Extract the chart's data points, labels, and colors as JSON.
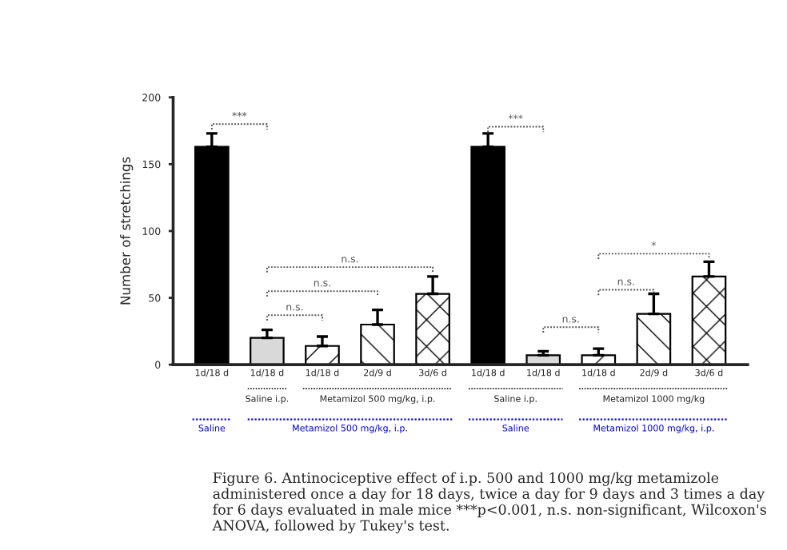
{
  "chart_data": {
    "type": "bar",
    "ylabel": "Number of stretchings",
    "categories": [
      "1d/18 d",
      "1d/18 d",
      "1d/18 d",
      "2d/9 d",
      "3d/6 d",
      "1d/18 d",
      "1d/18 d",
      "1d/18 d",
      "2d/9 d",
      "3d/6 d"
    ],
    "values": [
      163,
      20,
      14,
      30,
      53,
      163,
      7,
      7,
      38,
      66
    ],
    "errors": [
      [
        163,
        173
      ],
      [
        20,
        26
      ],
      [
        14,
        21
      ],
      [
        30,
        41
      ],
      [
        53,
        66
      ],
      [
        163,
        173
      ],
      [
        7,
        10
      ],
      [
        7,
        12
      ],
      [
        38,
        53
      ],
      [
        66,
        77
      ]
    ],
    "colors": [
      "#000000",
      "#d9d9d9",
      "#ffffff",
      "#ffffff",
      "#ffffff",
      "#000000",
      "#d9d9d9",
      "#ffffff",
      "#ffffff",
      "#ffffff"
    ],
    "ylim": [
      0,
      200
    ],
    "yticks": [
      0,
      50,
      100,
      150,
      200
    ],
    "grid": false,
    "annotations": [
      "***",
      "n.s.",
      "n.s.",
      "n.s.",
      "***",
      "n.s.",
      "n.s.",
      "*",
      "Saline i.p.",
      "Metamizol 500 mg/kg, i.p.",
      "Saline",
      "Metamizol 500 mg/kg, i.p.",
      "Saline i.p.",
      "Metamizol 1000 mg/kg",
      "Saline",
      "Metamizol 1000 mg/kg, i.p.",
      "Figure 6. Antinociceptive effect of i.p. 500 and 1000 mg/kg metamizole administered once a day for 18 days, twice a day for 9 days and 3 times a day for 6 days evaluated in male mice ***p<0.001, n.s. non-significant, Wilcoxon's ANOVA, followed by Tukey's test."
    ]
  }
}
